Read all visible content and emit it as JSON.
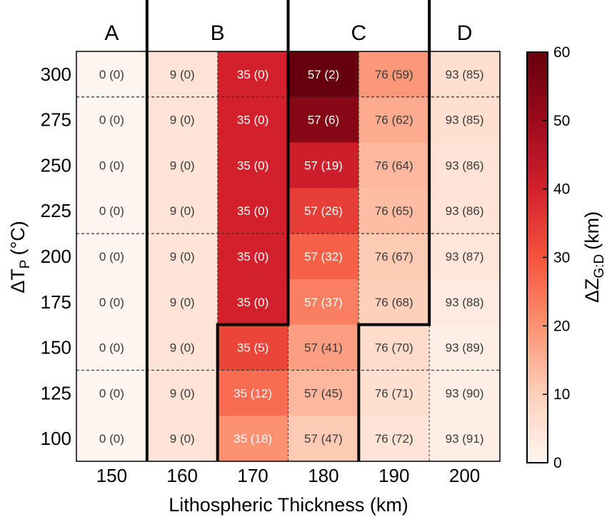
{
  "chart_data": {
    "type": "heatmap",
    "x": [
      150,
      160,
      170,
      180,
      190,
      200
    ],
    "y": [
      100,
      125,
      150,
      175,
      200,
      225,
      250,
      275,
      300
    ],
    "xlabel": "Lithospheric Thickness (km)",
    "ylabel": {
      "main": "ΔT",
      "sub": "P",
      "unit": "(°C)"
    },
    "colorbar": {
      "label": {
        "main": "ΔZ",
        "sub": "G:D",
        "unit": "(km)"
      },
      "range": [
        0,
        60
      ],
      "ticks": [
        0,
        10,
        20,
        30,
        40,
        50,
        60
      ],
      "colors": [
        "#fff5f0",
        "#fdd0bb",
        "#fc9272",
        "#f5533d",
        "#d2212d",
        "#9c0b1c",
        "#67000d"
      ]
    },
    "regions": [
      "A",
      "B",
      "C",
      "D"
    ],
    "cells": [
      {
        "y": 300,
        "row": [
          {
            "label": "0 (0)",
            "value": 0
          },
          {
            "label": "9 (0)",
            "value": 5
          },
          {
            "label": "35 (0)",
            "value": 40
          },
          {
            "label": "57 (2)",
            "value": 60
          },
          {
            "label": "76 (59)",
            "value": 19
          },
          {
            "label": "93 (85)",
            "value": 6
          }
        ]
      },
      {
        "y": 275,
        "row": [
          {
            "label": "0 (0)",
            "value": 0
          },
          {
            "label": "9 (0)",
            "value": 5
          },
          {
            "label": "35 (0)",
            "value": 40
          },
          {
            "label": "57 (6)",
            "value": 54
          },
          {
            "label": "76 (62)",
            "value": 16
          },
          {
            "label": "93 (85)",
            "value": 6
          }
        ]
      },
      {
        "y": 250,
        "row": [
          {
            "label": "0 (0)",
            "value": 0
          },
          {
            "label": "9 (0)",
            "value": 5
          },
          {
            "label": "35 (0)",
            "value": 40
          },
          {
            "label": "57 (19)",
            "value": 41
          },
          {
            "label": "76 (64)",
            "value": 14
          },
          {
            "label": "93 (86)",
            "value": 5
          }
        ]
      },
      {
        "y": 225,
        "row": [
          {
            "label": "0 (0)",
            "value": 0
          },
          {
            "label": "9 (0)",
            "value": 5
          },
          {
            "label": "35 (0)",
            "value": 40
          },
          {
            "label": "57 (26)",
            "value": 34
          },
          {
            "label": "76 (65)",
            "value": 13
          },
          {
            "label": "93 (86)",
            "value": 5
          }
        ]
      },
      {
        "y": 200,
        "row": [
          {
            "label": "0 (0)",
            "value": 0
          },
          {
            "label": "9 (0)",
            "value": 5
          },
          {
            "label": "35 (0)",
            "value": 40
          },
          {
            "label": "57 (32)",
            "value": 28
          },
          {
            "label": "76 (67)",
            "value": 11
          },
          {
            "label": "93 (87)",
            "value": 4
          }
        ]
      },
      {
        "y": 175,
        "row": [
          {
            "label": "0 (0)",
            "value": 0
          },
          {
            "label": "9 (0)",
            "value": 5
          },
          {
            "label": "35 (0)",
            "value": 40
          },
          {
            "label": "57 (37)",
            "value": 23
          },
          {
            "label": "76 (68)",
            "value": 10
          },
          {
            "label": "93 (88)",
            "value": 3
          }
        ]
      },
      {
        "y": 150,
        "row": [
          {
            "label": "0 (0)",
            "value": 0
          },
          {
            "label": "9 (0)",
            "value": 5
          },
          {
            "label": "35 (5)",
            "value": 33
          },
          {
            "label": "57 (41)",
            "value": 18
          },
          {
            "label": "76 (70)",
            "value": 7
          },
          {
            "label": "93 (89)",
            "value": 2
          }
        ]
      },
      {
        "y": 125,
        "row": [
          {
            "label": "0 (0)",
            "value": 0
          },
          {
            "label": "9 (0)",
            "value": 5
          },
          {
            "label": "35 (12)",
            "value": 26
          },
          {
            "label": "57 (45)",
            "value": 14
          },
          {
            "label": "76 (71)",
            "value": 6
          },
          {
            "label": "93 (90)",
            "value": 2
          }
        ]
      },
      {
        "y": 100,
        "row": [
          {
            "label": "0 (0)",
            "value": 0
          },
          {
            "label": "9 (0)",
            "value": 5
          },
          {
            "label": "35 (18)",
            "value": 20
          },
          {
            "label": "57 (47)",
            "value": 11
          },
          {
            "label": "76 (72)",
            "value": 5
          },
          {
            "label": "93 (91)",
            "value": 2
          }
        ]
      }
    ]
  }
}
